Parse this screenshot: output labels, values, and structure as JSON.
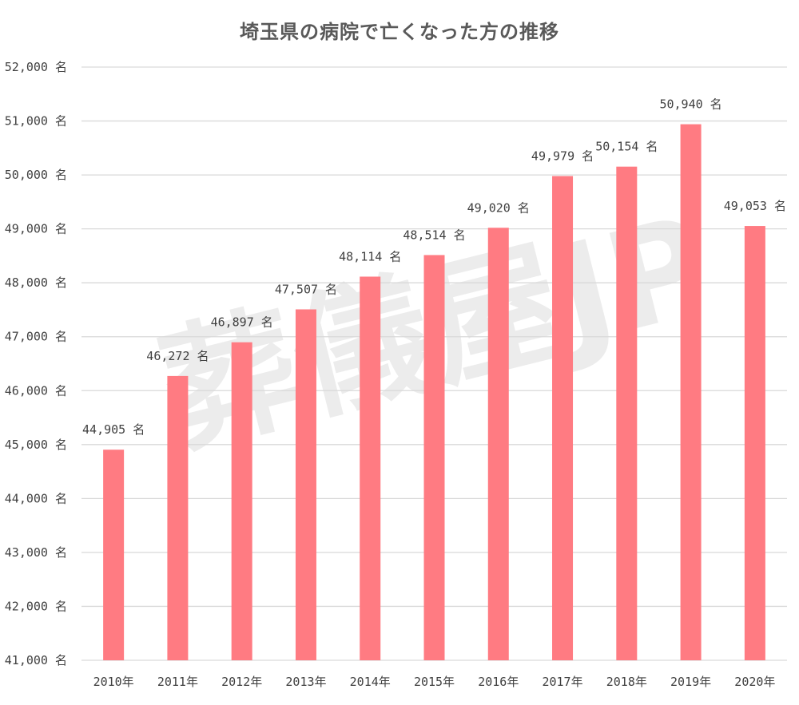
{
  "chart_data": {
    "type": "bar",
    "title": "埼玉県の病院で亡くなった方の推移",
    "categories": [
      "2010年",
      "2011年",
      "2012年",
      "2013年",
      "2014年",
      "2015年",
      "2016年",
      "2017年",
      "2018年",
      "2019年",
      "2020年"
    ],
    "values": [
      44905,
      46272,
      46897,
      47507,
      48114,
      48514,
      49020,
      49979,
      50154,
      50940,
      49053
    ],
    "data_labels": [
      "44,905 名",
      "46,272 名",
      "46,897 名",
      "47,507 名",
      "48,114 名",
      "48,514 名",
      "49,020 名",
      "49,979 名",
      "50,154 名",
      "50,940 名",
      "49,053 名"
    ],
    "y_ticks": [
      41000,
      42000,
      43000,
      44000,
      45000,
      46000,
      47000,
      48000,
      49000,
      50000,
      51000,
      52000
    ],
    "y_tick_labels": [
      "41,000 名",
      "42,000 名",
      "43,000 名",
      "44,000 名",
      "45,000 名",
      "46,000 名",
      "47,000 名",
      "48,000 名",
      "49,000 名",
      "50,000 名",
      "51,000 名",
      "52,000 名"
    ],
    "ylim": [
      41000,
      52000
    ],
    "xlabel": "",
    "ylabel": "",
    "grid": true,
    "legend": "none",
    "bar_color": "#ff7b82",
    "grid_color": "#d9d9d9"
  },
  "watermark": "葬儀屋JP"
}
